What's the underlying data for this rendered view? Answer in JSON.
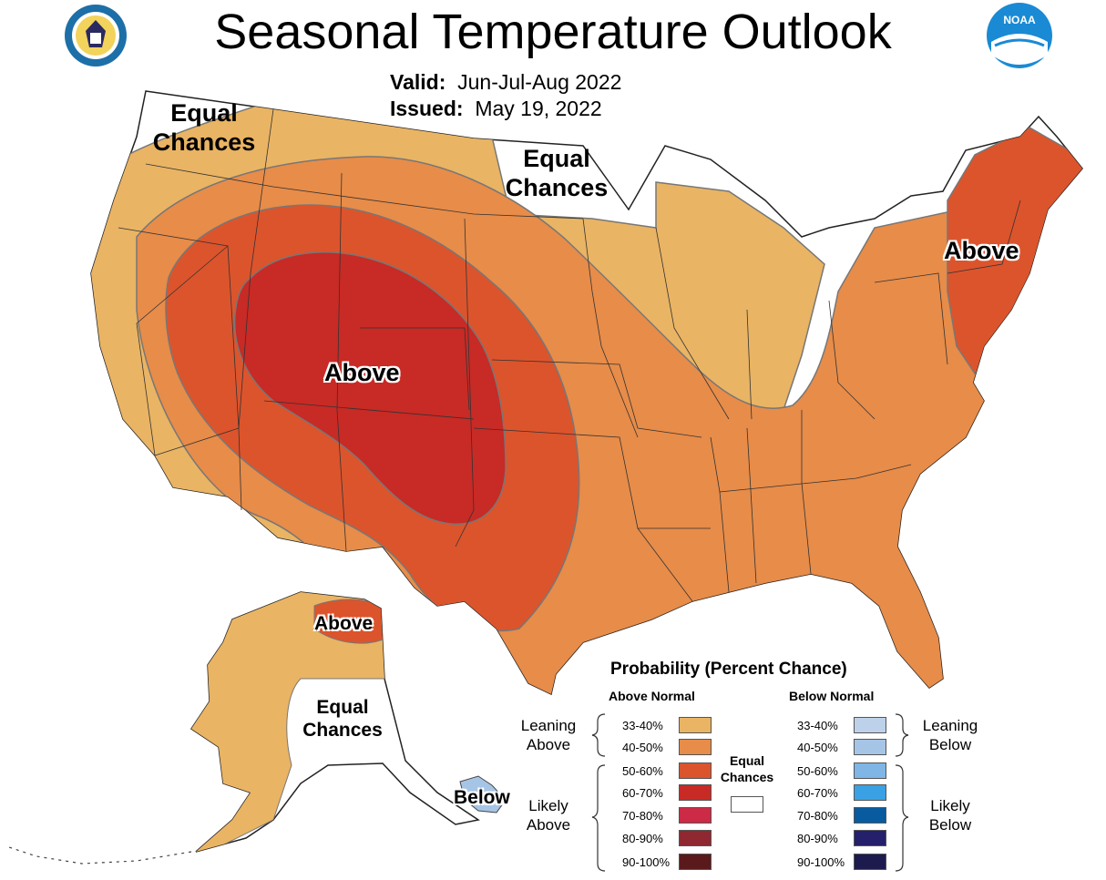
{
  "header": {
    "title": "Seasonal Temperature Outlook",
    "valid_label": "Valid:",
    "valid_value": "Jun-Jul-Aug 2022",
    "issued_label": "Issued:",
    "issued_value": "May 19, 2022"
  },
  "logos": {
    "left": "department-of-commerce-seal",
    "right": "noaa-logo",
    "right_text": "NOAA"
  },
  "map_labels": {
    "west_equal": "Equal Chances",
    "north_equal": "Equal Chances",
    "west_above": "Above",
    "ne_above": "Above",
    "ak_above": "Above",
    "ak_equal": "Equal Chances",
    "ak_below": "Below"
  },
  "colors": {
    "above_33_40": "#e9b464",
    "above_40_50": "#e78c49",
    "above_50_60": "#dc542c",
    "above_60_70": "#c82a25",
    "above_70_80": "#cc2a46",
    "above_80_90": "#8f2830",
    "above_90_100": "#5a1a1c",
    "below_33_40": "#bed1ea",
    "below_40_50": "#a6c5e6",
    "below_50_60": "#7fb6e6",
    "below_60_70": "#3aa2e4",
    "below_70_80": "#075b9e",
    "below_80_90": "#25206b",
    "below_90_100": "#1d1b4d",
    "equal_chances": "#ffffff"
  },
  "legend": {
    "title": "Probability (Percent Chance)",
    "above_header": "Above Normal",
    "below_header": "Below Normal",
    "ranges": [
      "33-40%",
      "40-50%",
      "50-60%",
      "60-70%",
      "70-80%",
      "80-90%",
      "90-100%"
    ],
    "leaning_above": "Leaning Above",
    "likely_above": "Likely Above",
    "leaning_below": "Leaning Below",
    "likely_below": "Likely Below",
    "equal_chances": "Equal Chances"
  }
}
